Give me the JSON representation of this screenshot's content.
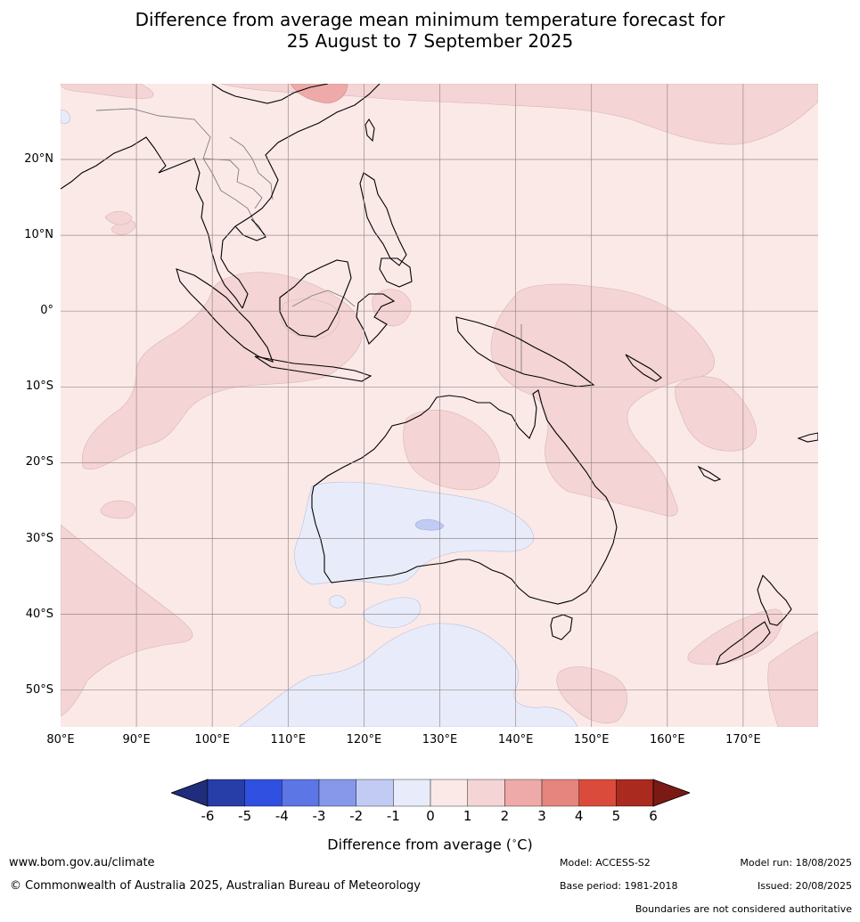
{
  "title": {
    "line1": "Difference from average mean minimum temperature forecast for",
    "line2": "25 August to 7 September 2025"
  },
  "map": {
    "lat_labels": [
      "20°N",
      "10°N",
      "0°",
      "10°S",
      "20°S",
      "30°S",
      "40°S",
      "50°S"
    ],
    "lon_labels": [
      "80°E",
      "90°E",
      "100°E",
      "110°E",
      "120°E",
      "130°E",
      "140°E",
      "150°E",
      "160°E",
      "170°E"
    ],
    "colors": {
      "background_anomaly": "#fbe9e8",
      "warm_1_2": "#f4d4d4",
      "warm_2_3": "#edaaa8",
      "cool_0_1": "#e8ecfa",
      "cool_1_2": "#c2cbf4",
      "coastline": "#000000",
      "borders": "#808080",
      "grid": "#9a8a8a"
    }
  },
  "colorbar": {
    "ticks": [
      "-6",
      "-5",
      "-4",
      "-3",
      "-2",
      "-1",
      "0",
      "1",
      "2",
      "3",
      "4",
      "5",
      "6"
    ],
    "colors": [
      "#1f2d7c",
      "#273da8",
      "#2f50e0",
      "#5d76e5",
      "#8798eb",
      "#c2cbf4",
      "#e8ecfa",
      "#fbe9e8",
      "#f4d4d4",
      "#edaaa8",
      "#e6847e",
      "#db4b3c",
      "#aa2a20",
      "#7b1a15"
    ],
    "label": "Difference from average (",
    "label_unit_degree": "∘",
    "label_unit": "C)"
  },
  "footer": {
    "website": "www.bom.gov.au/climate",
    "copyright": "© Commonwealth of Australia 2025, Australian Bureau of Meteorology",
    "model": "Model: ACCESS-S2",
    "base_period": "Base period: 1981-2018",
    "model_run": "Model run: 18/08/2025",
    "issued": "Issued: 20/08/2025",
    "disclaimer": "Boundaries are not considered authoritative"
  }
}
